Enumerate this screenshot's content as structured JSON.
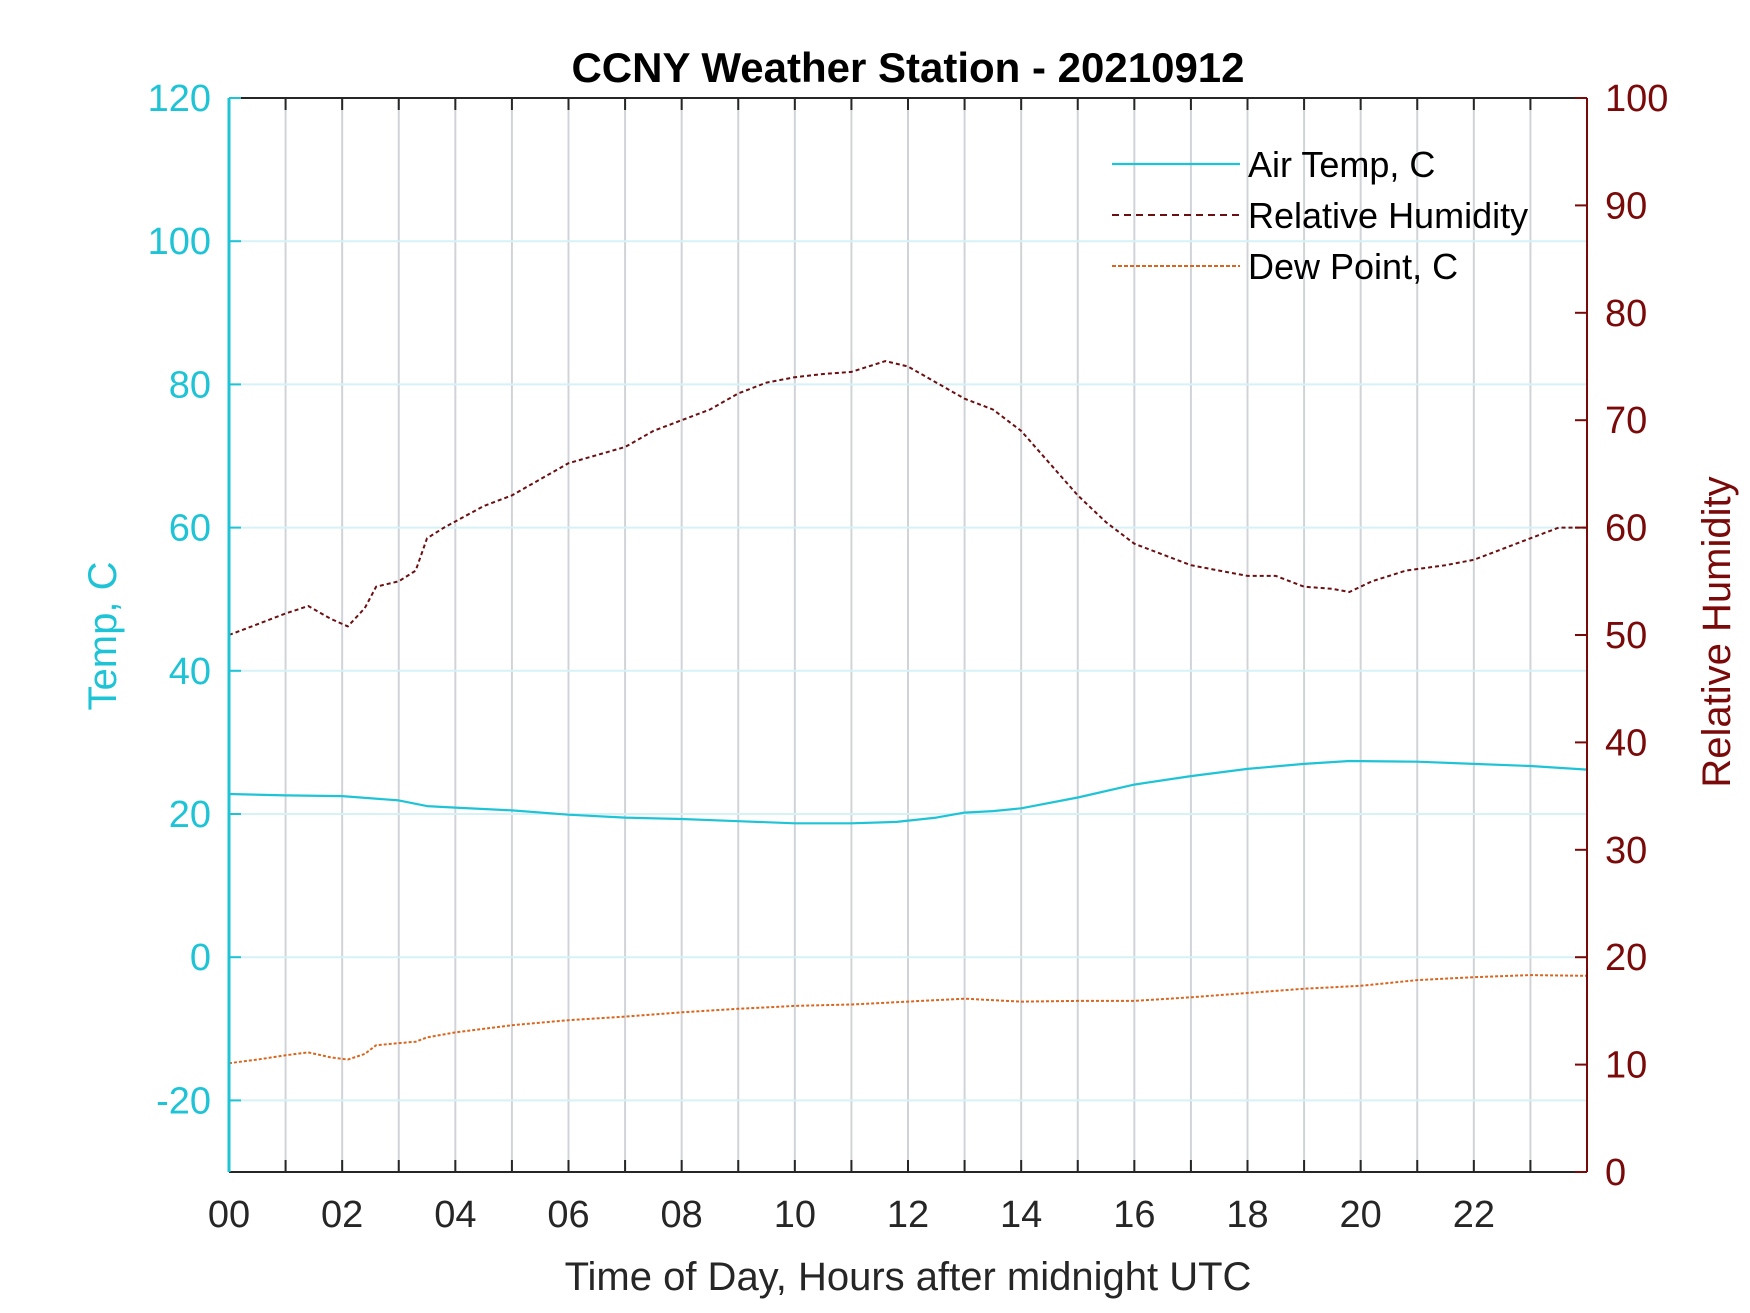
{
  "chart_data": {
    "type": "line",
    "title": "CCNY Weather Station - 20210912",
    "xlabel": "Time of Day, Hours after midnight UTC",
    "ylabel_left": "Temp, C",
    "ylabel_right": "Relative Humidity",
    "xlim": [
      0,
      24
    ],
    "ylim_left": [
      -30,
      120
    ],
    "ylim_right": [
      0,
      100
    ],
    "x_ticks": [
      0,
      2,
      4,
      6,
      8,
      10,
      12,
      14,
      16,
      18,
      20,
      22
    ],
    "x_tick_labels": [
      "00",
      "02",
      "04",
      "06",
      "08",
      "10",
      "12",
      "14",
      "16",
      "18",
      "20",
      "22"
    ],
    "y_left_ticks": [
      -20,
      0,
      20,
      40,
      60,
      80,
      100,
      120
    ],
    "y_right_ticks": [
      0,
      10,
      20,
      30,
      40,
      50,
      60,
      70,
      80,
      90,
      100
    ],
    "grid": true,
    "legend_position": "top-right",
    "colors": {
      "left_axis": "#1ec4d6",
      "right_axis": "#7a0a0a",
      "air_temp": "#1ec4d6",
      "humidity": "#6b0f12",
      "dew_point": "#d9661f"
    },
    "series": [
      {
        "name": "Air Temp, C",
        "axis": "left",
        "x": [
          0,
          1,
          2,
          3,
          3.5,
          4,
          5,
          6,
          7,
          8,
          9,
          10,
          11,
          11.8,
          12.5,
          13,
          13.5,
          14,
          15,
          16,
          17,
          18,
          19,
          19.8,
          21,
          22,
          23,
          24
        ],
        "y": [
          22.8,
          22.6,
          22.5,
          21.9,
          21.1,
          20.9,
          20.5,
          19.9,
          19.5,
          19.3,
          19.0,
          18.7,
          18.7,
          18.9,
          19.5,
          20.2,
          20.4,
          20.8,
          22.3,
          24.1,
          25.3,
          26.3,
          27.0,
          27.4,
          27.3,
          27.0,
          26.7,
          26.2
        ]
      },
      {
        "name": "Relative Humidity",
        "axis": "right",
        "x": [
          0,
          0.5,
          1,
          1.4,
          1.8,
          2.1,
          2.4,
          2.6,
          3.0,
          3.3,
          3.5,
          3.8,
          4.5,
          5.0,
          5.5,
          6.0,
          7.0,
          7.5,
          8.0,
          8.5,
          9.0,
          9.5,
          10.0,
          10.5,
          11.0,
          11.6,
          12.0,
          12.5,
          13.0,
          13.5,
          14.0,
          14.5,
          15.0,
          15.5,
          16.0,
          16.5,
          17.0,
          17.5,
          18.0,
          18.5,
          19.0,
          19.5,
          19.8,
          20.2,
          20.8,
          21.5,
          22.0,
          22.5,
          23.0,
          23.5,
          24.0
        ],
        "y": [
          50,
          51,
          52,
          52.7,
          51.5,
          50.8,
          52.5,
          54.5,
          55,
          56,
          59,
          60,
          62,
          63,
          64.5,
          66,
          67.5,
          69,
          70,
          71,
          72.5,
          73.5,
          74,
          74.3,
          74.5,
          75.5,
          75,
          73.5,
          72,
          71,
          69,
          66,
          63,
          60.5,
          58.5,
          57.5,
          56.5,
          56,
          55.5,
          55.5,
          54.5,
          54.3,
          54,
          55,
          56,
          56.5,
          57,
          58,
          59,
          60,
          60
        ]
      },
      {
        "name": "Dew Point, C",
        "axis": "left",
        "x": [
          0,
          0.5,
          1,
          1.4,
          1.8,
          2.1,
          2.4,
          2.6,
          3.0,
          3.3,
          3.5,
          4.0,
          5.0,
          6.0,
          7.0,
          8.0,
          9.0,
          10.0,
          11.0,
          12.0,
          13.0,
          14.0,
          15.0,
          16.0,
          17.0,
          18.0,
          19.0,
          20.0,
          21.0,
          22.0,
          23.0,
          24.0
        ],
        "y": [
          -14.8,
          -14.3,
          -13.7,
          -13.3,
          -14.0,
          -14.3,
          -13.5,
          -12.3,
          -12.0,
          -11.8,
          -11.2,
          -10.5,
          -9.5,
          -8.8,
          -8.3,
          -7.7,
          -7.2,
          -6.8,
          -6.6,
          -6.2,
          -5.8,
          -6.2,
          -6.1,
          -6.1,
          -5.6,
          -5.0,
          -4.4,
          -4.0,
          -3.2,
          -2.8,
          -2.5,
          -2.6
        ]
      }
    ]
  }
}
